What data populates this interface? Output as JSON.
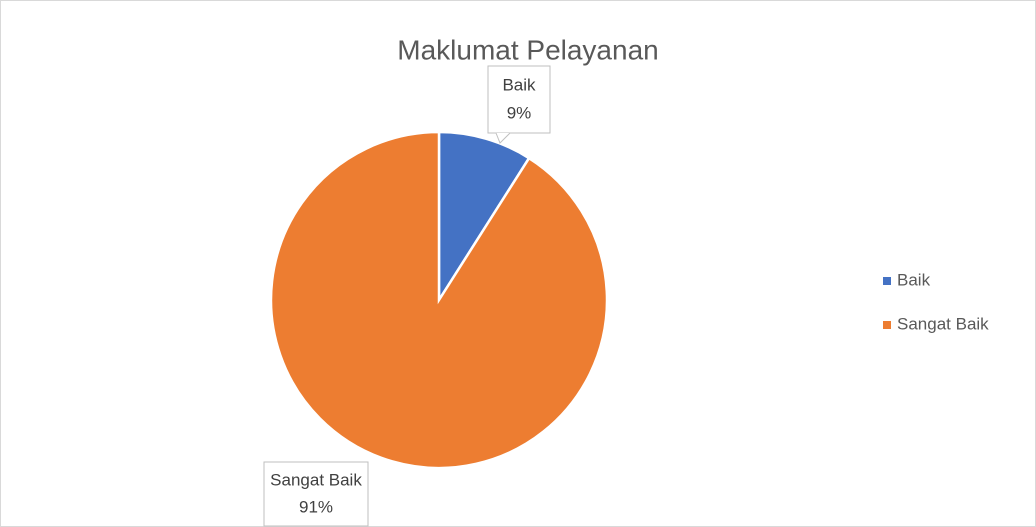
{
  "chart_data": {
    "type": "pie",
    "title": "Maklumat Pelayanan",
    "categories": [
      "Baik",
      "Sangat Baik"
    ],
    "values": [
      9,
      91
    ],
    "value_labels": [
      "9%",
      "91%"
    ],
    "colors": [
      "#4472c4",
      "#ed7d31"
    ],
    "legend": "right"
  }
}
